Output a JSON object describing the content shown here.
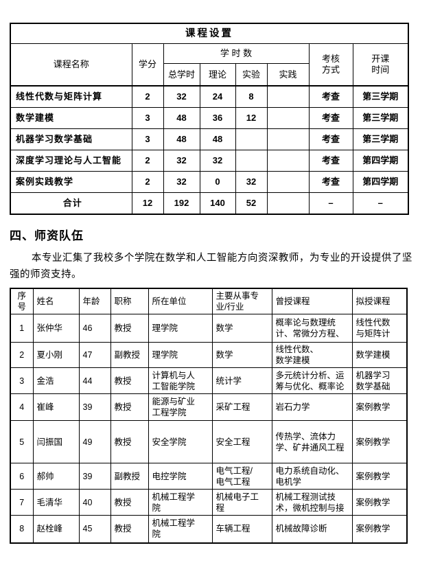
{
  "colors": {
    "text": "#000000",
    "border": "#000000",
    "background": "#ffffff"
  },
  "course_table": {
    "title": "课程设置",
    "headers": {
      "course_name": "课程名称",
      "credits": "学分",
      "hours_group": "学 时 数",
      "total_hours": "总学时",
      "theory": "理论",
      "experiment": "实验",
      "practice": "实践",
      "assessment": "考核\n方式",
      "start_term": "开课\n时间"
    },
    "rows": [
      [
        "线性代数与矩阵计算",
        "2",
        "32",
        "24",
        "8",
        "",
        "考查",
        "第三学期"
      ],
      [
        "数学建模",
        "3",
        "48",
        "36",
        "12",
        "",
        "考查",
        "第三学期"
      ],
      [
        "机器学习数学基础",
        "3",
        "48",
        "48",
        "",
        "",
        "考查",
        "第三学期"
      ],
      [
        "深度学习理论与人工智能",
        "2",
        "32",
        "32",
        "",
        "",
        "考查",
        "第四学期"
      ],
      [
        "案例实践教学",
        "2",
        "32",
        "0",
        "32",
        "",
        "考查",
        "第四学期"
      ]
    ],
    "total_row": [
      "合计",
      "12",
      "192",
      "140",
      "52",
      "",
      "–",
      "–"
    ]
  },
  "section": {
    "heading": "四、师资队伍",
    "paragraph": "本专业汇集了我校多个学院在数学和人工智能方向资深教师，为专业的开设提供了坚强的师资支持。"
  },
  "faculty_table": {
    "headers": [
      "序\n号",
      "姓名",
      "年龄",
      "职称",
      "所在单位",
      "主要从事专\n业/行业",
      "曾授课程",
      "拟授课程"
    ],
    "rows": [
      [
        "1",
        "张仲华",
        "46",
        "教授",
        "理学院",
        "数学",
        "概率论与数理统\n计、常微分方程、",
        "线性代数\n与矩阵计"
      ],
      [
        "2",
        "夏小刚",
        "47",
        "副教授",
        "理学院",
        "数学",
        "线性代数、\n数学建模",
        "数学建模"
      ],
      [
        "3",
        "金浩",
        "44",
        "教授",
        "计算机与人\n工智能学院",
        "统计学",
        "多元统计分析、运\n筹与优化、概率论",
        "机器学习\n数学基础"
      ],
      [
        "4",
        "崔峰",
        "39",
        "教授",
        "能源与矿业\n工程学院",
        "采矿工程",
        "岩石力学",
        "案例教学"
      ],
      [
        "5",
        "闫振国",
        "49",
        "教授",
        "安全学院",
        "安全工程",
        "传热学、流体力\n学、矿井通风工程",
        "案例教学"
      ],
      [
        "6",
        "郝帅",
        "39",
        "副教授",
        "电控学院",
        "电气工程/\n电气工程",
        "电力系统自动化、\n电机学",
        "案例教学"
      ],
      [
        "7",
        "毛清华",
        "40",
        "教授",
        "机械工程学\n院",
        "机械电子工\n程",
        "机械工程测试技\n术，微机控制与接",
        "案例教学"
      ],
      [
        "8",
        "赵栓峰",
        "45",
        "教授",
        "机械工程学\n院",
        "车辆工程",
        "机械故障诊断",
        "案例教学"
      ]
    ]
  }
}
